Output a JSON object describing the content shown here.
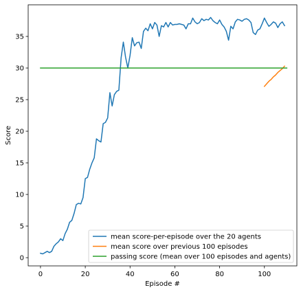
{
  "chart_data": {
    "type": "line",
    "title": "",
    "xlabel": "Episode #",
    "ylabel": "Score",
    "xlim": [
      -5.5,
      114.5
    ],
    "ylim": [
      -1.3,
      40.0
    ],
    "xticks": [
      0,
      20,
      40,
      60,
      80,
      100
    ],
    "yticks": [
      0,
      5,
      10,
      15,
      20,
      25,
      30,
      35
    ],
    "grid": false,
    "legend_placement": "lower-right",
    "series": [
      {
        "name": "mean score-per-episode over the 20 agents",
        "color": "#1f77b4",
        "x": [
          0,
          1,
          2,
          3,
          4,
          5,
          6,
          7,
          8,
          9,
          10,
          11,
          12,
          13,
          14,
          15,
          16,
          17,
          18,
          19,
          20,
          21,
          22,
          23,
          24,
          25,
          26,
          27,
          28,
          29,
          30,
          31,
          32,
          33,
          34,
          35,
          36,
          37,
          38,
          39,
          40,
          41,
          42,
          43,
          44,
          45,
          46,
          47,
          48,
          49,
          50,
          51,
          52,
          53,
          54,
          55,
          56,
          57,
          58,
          59,
          60,
          61,
          62,
          63,
          64,
          65,
          66,
          67,
          68,
          69,
          70,
          71,
          72,
          73,
          74,
          75,
          76,
          77,
          78,
          79,
          80,
          81,
          82,
          83,
          84,
          85,
          86,
          87,
          88,
          89,
          90,
          91,
          92,
          93,
          94,
          95,
          96,
          97,
          98,
          99,
          100,
          101,
          102,
          103,
          104,
          105,
          106,
          107,
          108,
          109
        ],
        "y": [
          0.7,
          0.6,
          0.8,
          1.0,
          0.8,
          1.0,
          1.8,
          2.2,
          2.5,
          3.0,
          2.7,
          3.8,
          4.5,
          5.6,
          5.9,
          7.0,
          8.4,
          8.6,
          8.5,
          9.5,
          12.5,
          12.7,
          14.0,
          15.0,
          15.8,
          18.8,
          18.5,
          18.3,
          21.2,
          21.4,
          22.1,
          26.1,
          24.0,
          25.8,
          26.3,
          26.5,
          31.6,
          34.1,
          31.7,
          30.0,
          32.0,
          34.8,
          33.5,
          34.0,
          34.1,
          33.1,
          35.8,
          36.3,
          35.9,
          37.0,
          36.2,
          37.2,
          36.8,
          35.0,
          36.7,
          36.5,
          37.2,
          36.5,
          37.2,
          36.8,
          36.9,
          36.9,
          37.0,
          36.9,
          36.8,
          36.2,
          37.0,
          37.0,
          37.9,
          37.3,
          37.0,
          37.2,
          37.8,
          37.5,
          37.7,
          37.6,
          38.0,
          37.5,
          37.2,
          37.0,
          37.6,
          36.9,
          36.5,
          35.8,
          34.4,
          36.6,
          36.2,
          37.3,
          37.7,
          37.6,
          37.4,
          37.7,
          37.8,
          37.6,
          37.2,
          35.6,
          35.3,
          36.0,
          36.2,
          37.0,
          37.9,
          37.2,
          36.6,
          36.9,
          37.3,
          37.1,
          36.4,
          37.0,
          37.3,
          36.7
        ],
        "line_width": 1.5
      },
      {
        "name": "mean score over previous 100 episodes",
        "color": "#ff7f0e",
        "x": [
          100,
          101,
          102,
          103,
          104,
          105,
          106,
          107,
          108,
          109
        ],
        "y": [
          27.1,
          27.5,
          27.9,
          28.2,
          28.6,
          28.9,
          29.3,
          29.6,
          29.9,
          30.3
        ],
        "line_width": 1.5
      },
      {
        "name": "passing score (mean over 100 episodes and agents)",
        "color": "#2ca02c",
        "x": [
          0,
          110
        ],
        "y": [
          30,
          30
        ],
        "line_width": 1.5
      }
    ]
  }
}
